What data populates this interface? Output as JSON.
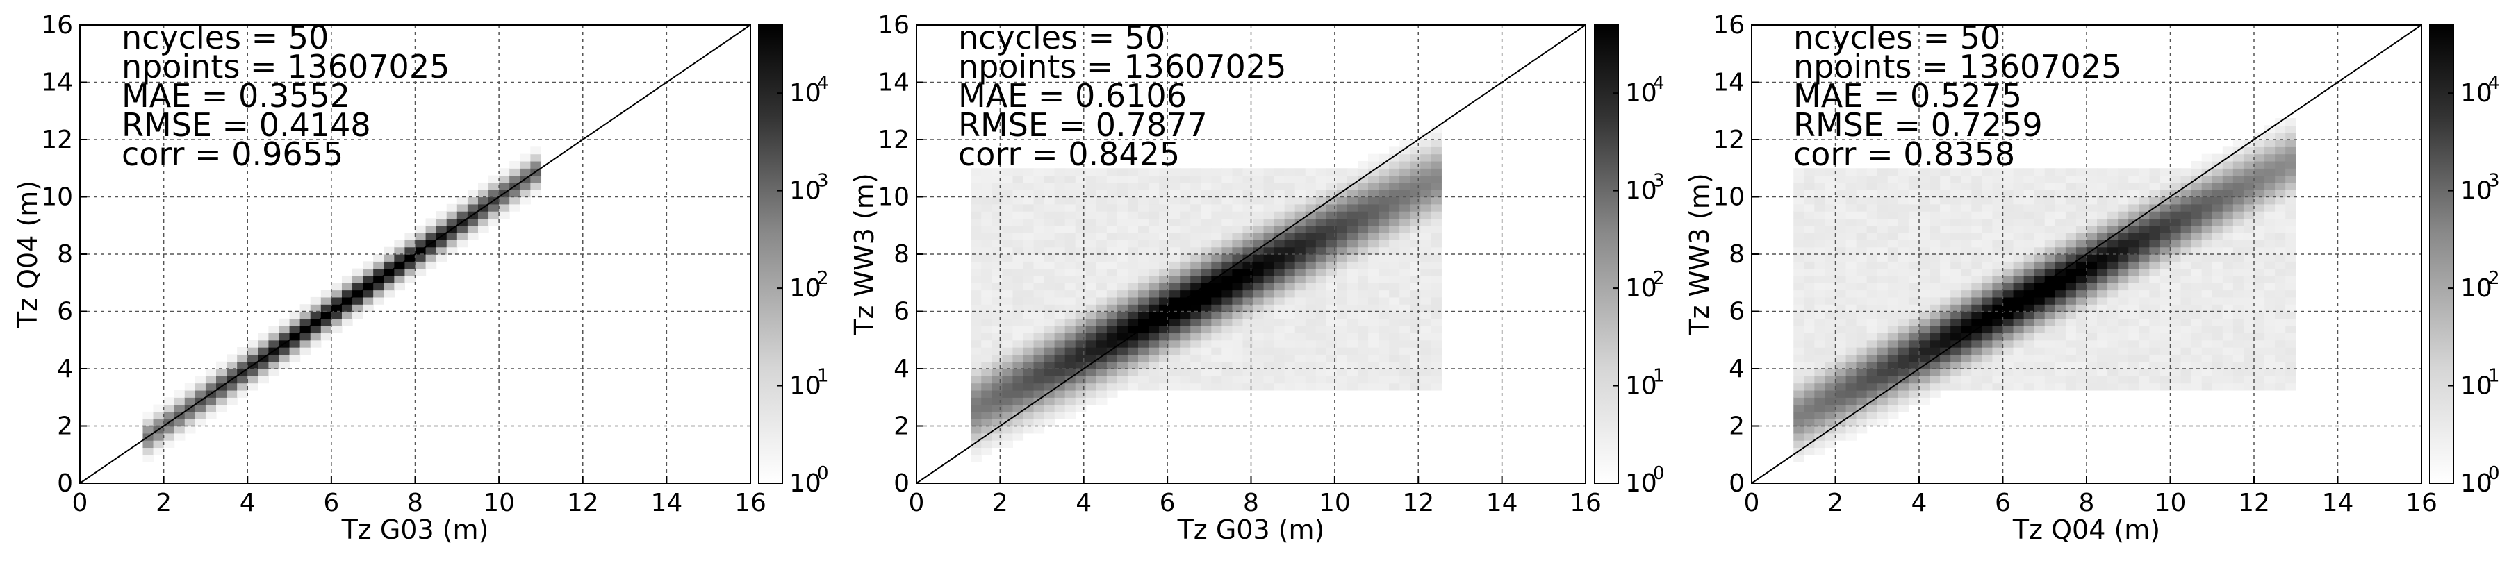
{
  "chart_data": [
    {
      "type": "heatmap",
      "xlabel": "Tz G03 (m)",
      "ylabel": "Tz Q04 (m)",
      "xlim": [
        0,
        16
      ],
      "ylim": [
        0,
        16
      ],
      "xticks": [
        0,
        2,
        4,
        6,
        8,
        10,
        12,
        14,
        16
      ],
      "yticks": [
        0,
        2,
        4,
        6,
        8,
        10,
        12,
        14,
        16
      ],
      "grid": true,
      "identity_line": true,
      "stats": [
        "ncycles = 50",
        "npoints = 13607025",
        "MAE = 0.3552",
        "RMSE = 0.4148",
        "corr = 0.9655"
      ],
      "density": {
        "slope": 1.0,
        "intercept": 0.0,
        "spread": 0.45,
        "x_range": [
          1.5,
          11.0
        ]
      },
      "colorbar": {
        "scale": "log",
        "min": 1,
        "max": 50000,
        "tick_exponents": [
          0,
          1,
          2,
          3,
          4
        ],
        "tick_labels": [
          "10",
          "10",
          "10",
          "10",
          "10"
        ]
      }
    },
    {
      "type": "heatmap",
      "xlabel": "Tz G03 (m)",
      "ylabel": "Tz WW3 (m)",
      "xlim": [
        0,
        16
      ],
      "ylim": [
        0,
        16
      ],
      "xticks": [
        0,
        2,
        4,
        6,
        8,
        10,
        12,
        14,
        16
      ],
      "yticks": [
        0,
        2,
        4,
        6,
        8,
        10,
        12,
        14,
        16
      ],
      "grid": true,
      "identity_line": true,
      "stats": [
        "ncycles = 50",
        "npoints = 13607025",
        "MAE = 0.6106",
        "RMSE = 0.7877",
        "corr = 0.8425"
      ],
      "density": {
        "slope": 0.72,
        "intercept": 1.6,
        "spread": 1.1,
        "x_range": [
          1.3,
          12.5
        ]
      },
      "colorbar": {
        "scale": "log",
        "min": 1,
        "max": 50000,
        "tick_exponents": [
          0,
          1,
          2,
          3,
          4
        ],
        "tick_labels": [
          "10",
          "10",
          "10",
          "10",
          "10"
        ]
      }
    },
    {
      "type": "heatmap",
      "xlabel": "Tz Q04 (m)",
      "ylabel": "Tz WW3 (m)",
      "xlim": [
        0,
        16
      ],
      "ylim": [
        0,
        16
      ],
      "xticks": [
        0,
        2,
        4,
        6,
        8,
        10,
        12,
        14,
        16
      ],
      "yticks": [
        0,
        2,
        4,
        6,
        8,
        10,
        12,
        14,
        16
      ],
      "grid": true,
      "identity_line": true,
      "stats": [
        "ncycles = 50",
        "npoints = 13607025",
        "MAE = 0.5275",
        "RMSE = 0.7259",
        "corr = 0.8358"
      ],
      "density": {
        "slope": 0.75,
        "intercept": 1.5,
        "spread": 1.0,
        "x_range": [
          1.0,
          13.0
        ]
      },
      "colorbar": {
        "scale": "log",
        "min": 1,
        "max": 50000,
        "tick_exponents": [
          0,
          1,
          2,
          3,
          4
        ],
        "tick_labels": [
          "10",
          "10",
          "10",
          "10",
          "10"
        ]
      }
    }
  ]
}
